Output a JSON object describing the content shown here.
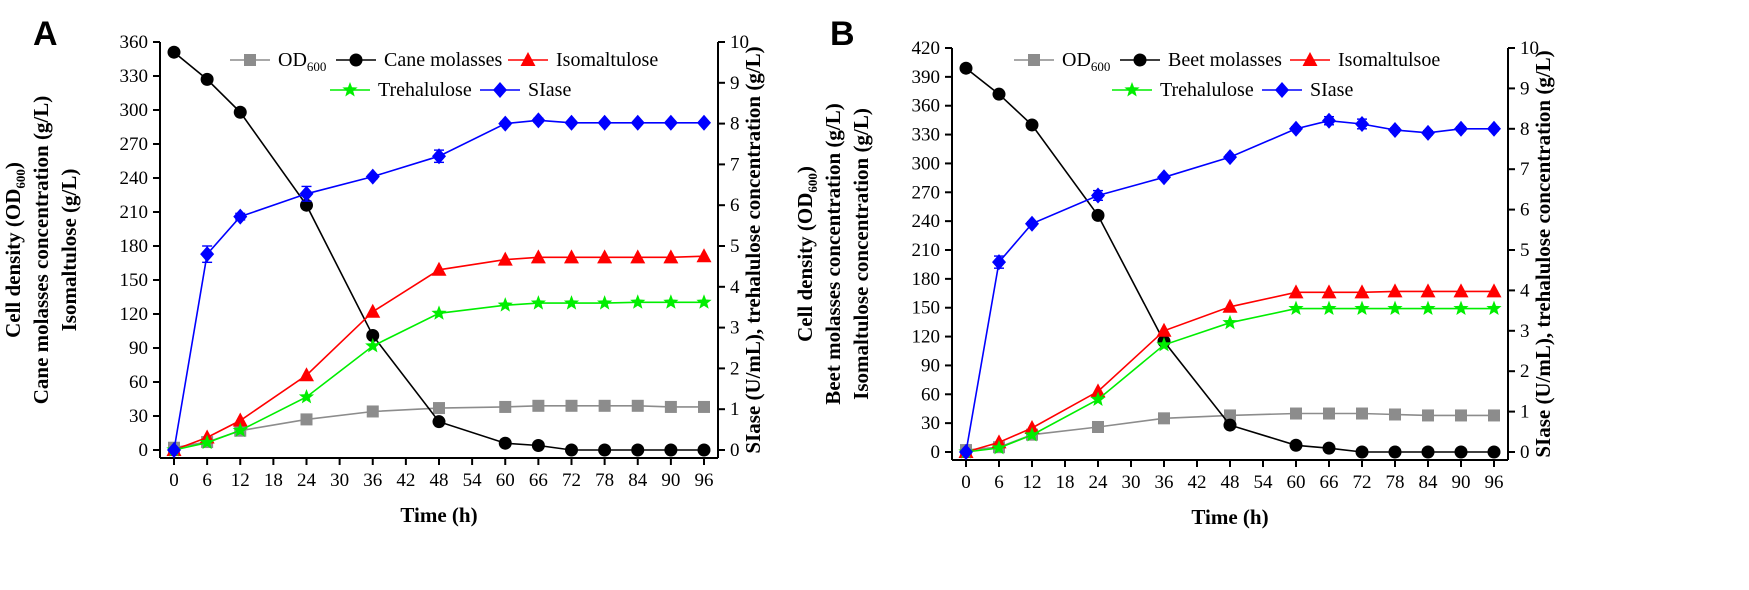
{
  "chart_data": [
    {
      "type": "line",
      "panel_label": "A",
      "x": [
        0,
        6,
        12,
        24,
        36,
        48,
        60,
        66,
        72,
        78,
        84,
        90,
        96
      ],
      "xlabel": "Time (h)",
      "x_ticks": [
        0,
        6,
        12,
        18,
        24,
        30,
        36,
        42,
        48,
        54,
        60,
        66,
        72,
        78,
        84,
        90,
        96
      ],
      "ylabel_left": [
        "Cell density (OD",
        "600",
        ")",
        "Cane molasses concentration (g/L)",
        "Isomaltulose (g/L)"
      ],
      "ylabel_right": "SIase (U/mL), trehalulose concentration (g/L)",
      "ylim_left": [
        0,
        360
      ],
      "ylim_right": [
        0,
        10
      ],
      "y_ticks_left": [
        0,
        30,
        60,
        90,
        120,
        150,
        180,
        210,
        240,
        270,
        300,
        330,
        360
      ],
      "y_ticks_right": [
        0,
        1,
        2,
        3,
        4,
        5,
        6,
        7,
        8,
        9,
        10
      ],
      "legend": {
        "placement": "top-center"
      },
      "series": [
        {
          "name": "OD",
          "name_sub": "600",
          "axis": "left",
          "color": "#8c8c8c",
          "marker": "square",
          "values": [
            2,
            7,
            17,
            27,
            34,
            37,
            38,
            39,
            39,
            39,
            39,
            38,
            38
          ]
        },
        {
          "name": "Cane molasses",
          "axis": "left",
          "color": "#000000",
          "marker": "circle",
          "values": [
            351,
            327,
            298,
            216,
            101,
            25,
            6,
            4,
            0,
            0,
            0,
            0,
            0
          ]
        },
        {
          "name": "Isomaltulose",
          "axis": "left",
          "color": "#ff0000",
          "marker": "triangle",
          "values": [
            0,
            11,
            26,
            66,
            122,
            159,
            168,
            170,
            170,
            170,
            170,
            170,
            171
          ]
        },
        {
          "name": "Trehalulose",
          "axis": "right",
          "color": "#00ee00",
          "marker": "star",
          "values": [
            0,
            0.18,
            0.48,
            1.3,
            2.55,
            3.35,
            3.55,
            3.6,
            3.6,
            3.6,
            3.62,
            3.62,
            3.62
          ]
        },
        {
          "name": "SIase",
          "axis": "right",
          "color": "#0000ff",
          "marker": "diamond",
          "values": [
            0,
            4.8,
            5.72,
            6.28,
            6.7,
            7.2,
            8.0,
            8.08,
            8.02,
            8.02,
            8.02,
            8.02,
            8.02
          ],
          "errors": [
            0,
            0.2,
            0.08,
            0.18,
            0.05,
            0.15,
            0.05,
            0.05,
            0.04,
            0.04,
            0.04,
            0.04,
            0.04
          ]
        }
      ]
    },
    {
      "type": "line",
      "panel_label": "B",
      "x": [
        0,
        6,
        12,
        24,
        36,
        48,
        60,
        66,
        72,
        78,
        84,
        90,
        96
      ],
      "xlabel": "Time (h)",
      "x_ticks": [
        0,
        6,
        12,
        18,
        24,
        30,
        36,
        42,
        48,
        54,
        60,
        66,
        72,
        78,
        84,
        90,
        96
      ],
      "ylabel_left": [
        "Cell density (OD",
        "600",
        ")",
        "Beet molasses concentration (g/L)",
        "Isomaltulose concentration (g/L)"
      ],
      "ylabel_right": "SIase (U/mL), trehalulose concentration (g/L)",
      "ylim_left": [
        0,
        420
      ],
      "ylim_right": [
        0,
        10
      ],
      "y_ticks_left": [
        0,
        30,
        60,
        90,
        120,
        150,
        180,
        210,
        240,
        270,
        300,
        330,
        360,
        390,
        420
      ],
      "y_ticks_right": [
        0,
        1,
        2,
        3,
        4,
        5,
        6,
        7,
        8,
        9,
        10
      ],
      "legend": {
        "placement": "top-center"
      },
      "series": [
        {
          "name": "OD",
          "name_sub": "600",
          "axis": "left",
          "color": "#8c8c8c",
          "marker": "square",
          "values": [
            2,
            5,
            18,
            26,
            35,
            38,
            40,
            40,
            40,
            39,
            38,
            38,
            38
          ]
        },
        {
          "name": "Beet molasses",
          "axis": "left",
          "color": "#000000",
          "marker": "circle",
          "values": [
            399,
            372,
            340,
            246,
            115,
            28,
            7,
            4,
            0,
            0,
            0,
            0,
            0
          ]
        },
        {
          "name": "Isomaltulsoe",
          "axis": "left",
          "color": "#ff0000",
          "marker": "triangle",
          "values": [
            0,
            10,
            25,
            63,
            126,
            151,
            166,
            166,
            166,
            167,
            167,
            167,
            167
          ]
        },
        {
          "name": "Trehalulose",
          "axis": "right",
          "color": "#00ee00",
          "marker": "star",
          "values": [
            0,
            0.1,
            0.42,
            1.3,
            2.65,
            3.2,
            3.55,
            3.55,
            3.55,
            3.55,
            3.55,
            3.55,
            3.55
          ]
        },
        {
          "name": "SIase",
          "axis": "right",
          "color": "#0000ff",
          "marker": "diamond",
          "values": [
            0,
            4.7,
            5.65,
            6.35,
            6.8,
            7.3,
            8.0,
            8.2,
            8.12,
            7.97,
            7.9,
            8.0,
            8.0
          ],
          "errors": [
            0,
            0.15,
            0.05,
            0.12,
            0.05,
            0.05,
            0.05,
            0.1,
            0.12,
            0.05,
            0.05,
            0.05,
            0.05
          ]
        }
      ]
    }
  ]
}
